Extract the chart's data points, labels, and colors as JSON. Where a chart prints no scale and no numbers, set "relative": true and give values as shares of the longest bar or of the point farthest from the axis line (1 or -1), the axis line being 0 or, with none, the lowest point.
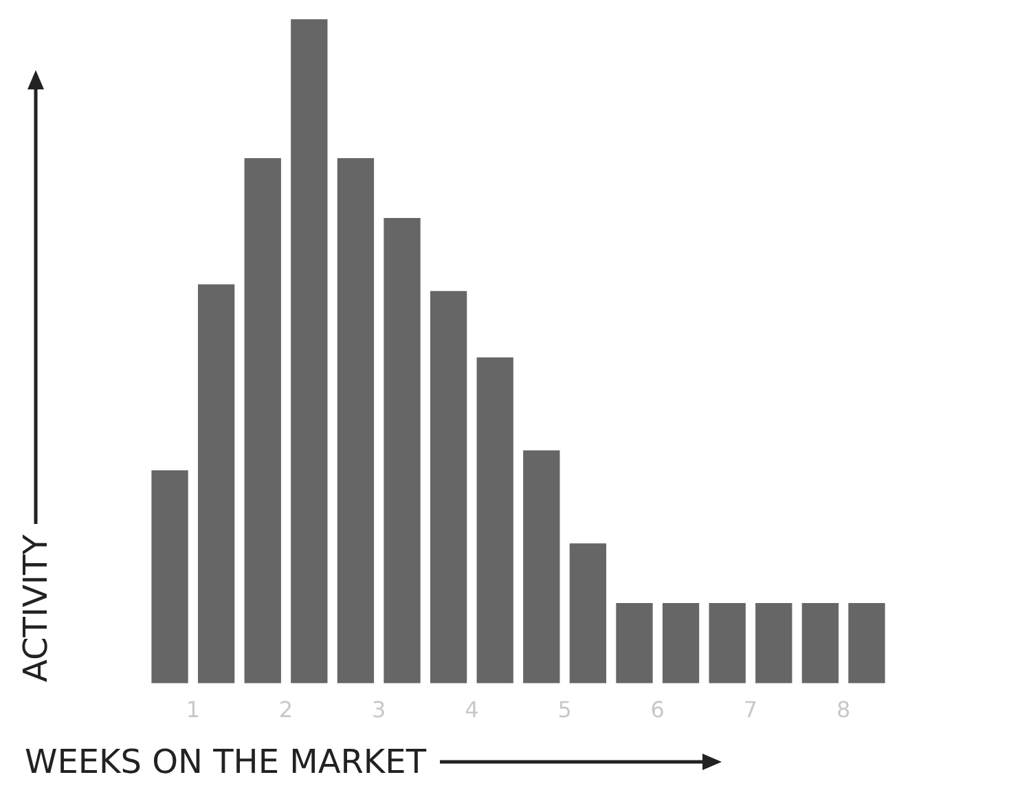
{
  "chart_data": {
    "type": "bar",
    "relative": true,
    "xlabel": "WEEKS ON THE MARKET",
    "ylabel": "ACTIVITY",
    "color": "#666666",
    "x": [
      0.75,
      1.25,
      1.75,
      2.25,
      2.75,
      3.25,
      3.75,
      4.25,
      4.75,
      5.25,
      5.75,
      6.25,
      6.75,
      7.25,
      7.75,
      8.25
    ],
    "values": [
      0.32,
      0.6,
      0.79,
      1,
      0.79,
      0.7,
      0.59,
      0.49,
      0.35,
      0.21,
      0.12,
      0.12,
      0.12,
      0.12,
      0.12,
      0.12
    ],
    "xlim": [
      0.5,
      8.5
    ],
    "xticks": [
      1,
      2,
      3,
      4,
      5,
      6,
      7,
      8
    ]
  }
}
